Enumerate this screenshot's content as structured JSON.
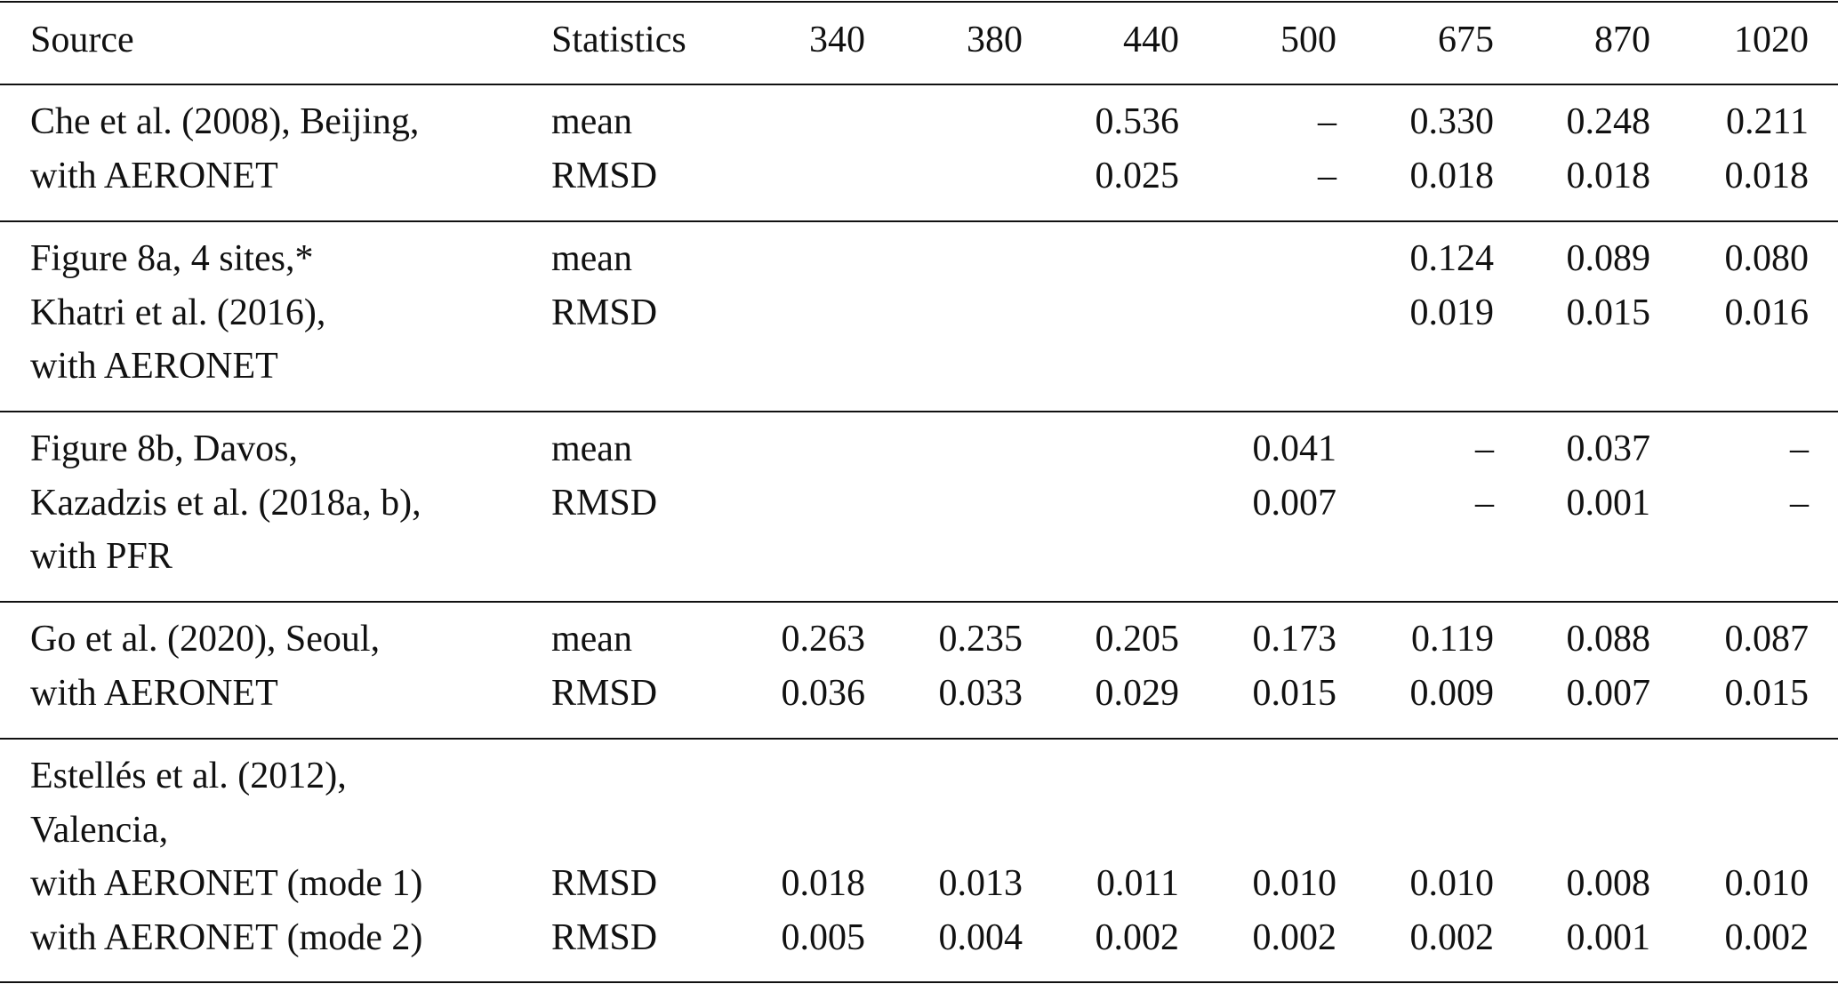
{
  "table": {
    "header": [
      "Source",
      "Statistics",
      "340",
      "380",
      "440",
      "500",
      "675",
      "870",
      "1020"
    ],
    "groups": [
      {
        "lines": [
          {
            "source": "Che et al. (2008), Beijing,",
            "statistics": "mean",
            "values": [
              null,
              null,
              "0.536",
              "–",
              "0.330",
              "0.248",
              "0.211"
            ]
          },
          {
            "source": "with AERONET",
            "statistics": "RMSD",
            "values": [
              null,
              null,
              "0.025",
              "–",
              "0.018",
              "0.018",
              "0.018"
            ]
          }
        ]
      },
      {
        "lines": [
          {
            "source": "Figure 8a, 4 sites,*",
            "statistics": "mean",
            "values": [
              null,
              null,
              null,
              null,
              "0.124",
              "0.089",
              "0.080"
            ]
          },
          {
            "source": "Khatri et al. (2016),",
            "statistics": "RMSD",
            "values": [
              null,
              null,
              null,
              null,
              "0.019",
              "0.015",
              "0.016"
            ]
          },
          {
            "source": "with AERONET"
          }
        ]
      },
      {
        "lines": [
          {
            "source": "Figure 8b, Davos,",
            "statistics": "mean",
            "values": [
              null,
              null,
              null,
              "0.041",
              "–",
              "0.037",
              "–"
            ]
          },
          {
            "source": "Kazadzis et al. (2018a, b),",
            "statistics": "RMSD",
            "values": [
              null,
              null,
              null,
              "0.007",
              "–",
              "0.001",
              "–"
            ]
          },
          {
            "source": "with PFR"
          }
        ]
      },
      {
        "lines": [
          {
            "source": "Go et al. (2020), Seoul,",
            "statistics": "mean",
            "values": [
              "0.263",
              "0.235",
              "0.205",
              "0.173",
              "0.119",
              "0.088",
              "0.087"
            ]
          },
          {
            "source": "with AERONET",
            "statistics": "RMSD",
            "values": [
              "0.036",
              "0.033",
              "0.029",
              "0.015",
              "0.009",
              "0.007",
              "0.015"
            ]
          }
        ]
      },
      {
        "lines": [
          {
            "source": "Estellés et al. (2012),"
          },
          {
            "source": "Valencia,"
          },
          {
            "source": "with AERONET (mode 1)",
            "statistics": "RMSD",
            "values": [
              "0.018",
              "0.013",
              "0.011",
              "0.010",
              "0.010",
              "0.008",
              "0.010"
            ]
          },
          {
            "source": "with AERONET (mode 2)",
            "statistics": "RMSD",
            "values": [
              "0.005",
              "0.004",
              "0.002",
              "0.002",
              "0.002",
              "0.001",
              "0.002"
            ]
          }
        ]
      }
    ]
  }
}
